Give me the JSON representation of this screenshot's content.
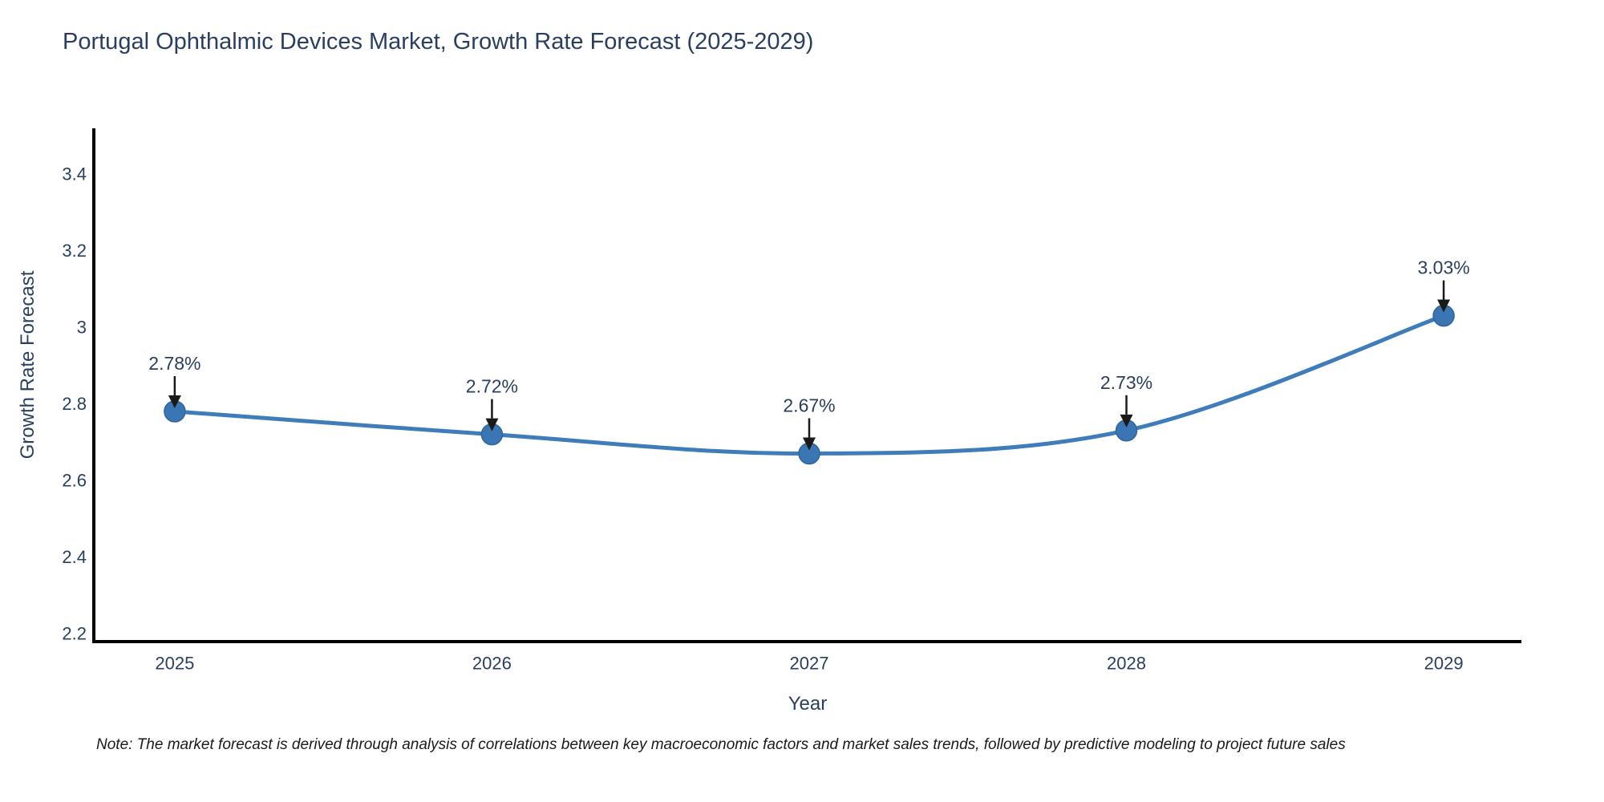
{
  "footnote": "Note: The market forecast is derived through analysis of correlations between key macroeconomic factors and market sales trends, followed by predictive modeling to project future sales",
  "chart_data": {
    "type": "line",
    "title": "Portugal Ophthalmic Devices Market, Growth Rate Forecast (2025-2029)",
    "xlabel": "Year",
    "ylabel": "Growth Rate Forecast",
    "x": [
      2025,
      2026,
      2027,
      2028,
      2029
    ],
    "series": [
      {
        "name": "Growth Rate Forecast",
        "values": [
          2.78,
          2.72,
          2.67,
          2.73,
          3.03
        ]
      }
    ],
    "annotations": [
      "2.78%",
      "2.72%",
      "2.67%",
      "2.73%",
      "3.03%"
    ],
    "yticks": [
      2.2,
      2.4,
      2.6,
      2.8,
      3,
      3.2,
      3.4
    ],
    "xlim": [
      2024.745,
      2029.245
    ],
    "ylim": [
      2.179,
      3.519
    ],
    "grid": false,
    "legend": false,
    "line_shape": "spline",
    "line_color": "#3f7cba",
    "marker_color": "#3a76b4",
    "marker_edge_color": "#31659c",
    "axis_color": "#000000",
    "annotation_arrow_color": "#1a1a1a",
    "text_color": "#2a3f5f"
  }
}
